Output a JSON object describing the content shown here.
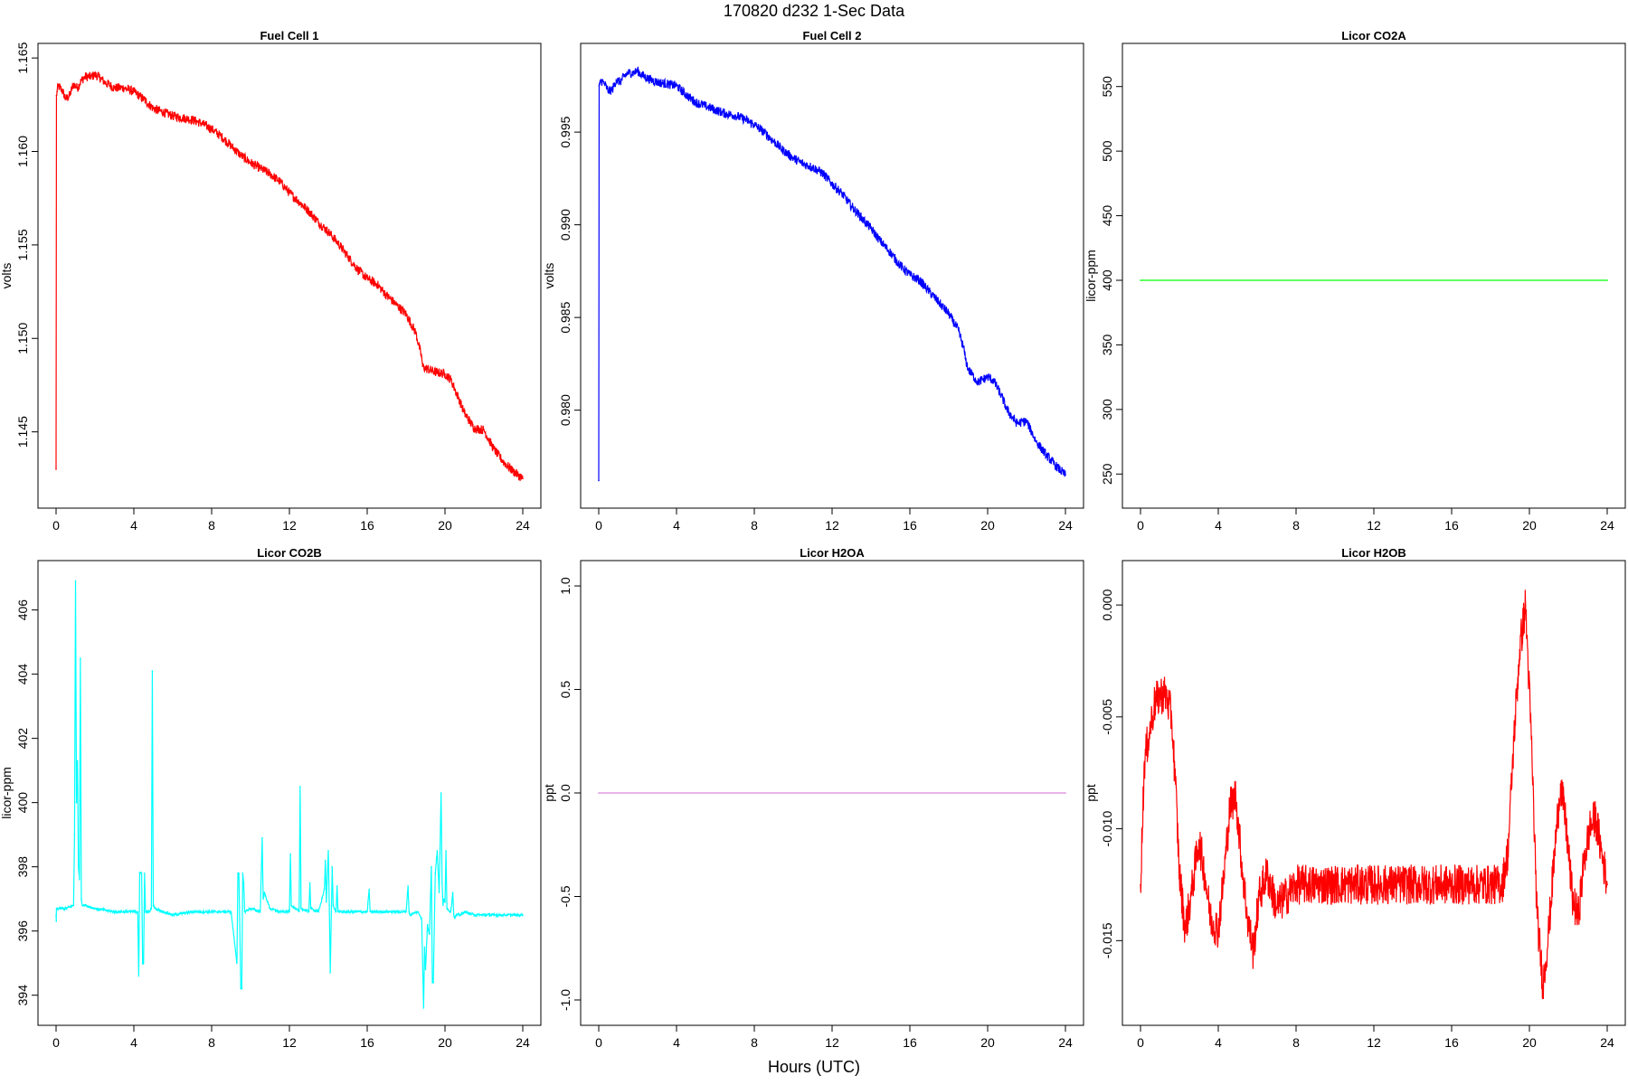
{
  "figure": {
    "suptitle": "170820   d232   1-Sec Data",
    "xlabel": "Hours (UTC)"
  },
  "chart_data": [
    {
      "id": "fc1",
      "type": "line",
      "title": "Fuel Cell 1",
      "ylabel": "volts",
      "color": "#ff0000",
      "xlim": [
        0,
        24
      ],
      "ylim": [
        1.1415,
        1.1652
      ],
      "xticks": [
        0,
        4,
        8,
        12,
        16,
        20,
        24
      ],
      "yticks": [
        1.145,
        1.15,
        1.155,
        1.16,
        1.165
      ],
      "ytick_labels": [
        "1.145",
        "1.150",
        "1.155",
        "1.160",
        "1.165"
      ],
      "noise": 0.00025,
      "x": [
        0,
        0.02,
        0.05,
        0.1,
        0.3,
        0.5,
        0.7,
        0.9,
        1.1,
        1.3,
        1.5,
        1.8,
        2.0,
        2.2,
        2.5,
        3.0,
        3.5,
        4.0,
        4.5,
        5.0,
        5.5,
        6.0,
        6.5,
        7.0,
        7.5,
        8.0,
        8.5,
        9.0,
        9.5,
        10.0,
        10.5,
        11.0,
        11.5,
        12.0,
        12.5,
        13.0,
        13.5,
        14.0,
        14.5,
        15.0,
        15.5,
        16.0,
        16.5,
        17.0,
        17.5,
        18.0,
        18.5,
        18.8,
        18.85,
        19.0,
        19.5,
        20.0,
        20.3,
        20.7,
        21.0,
        21.5,
        22.0,
        22.5,
        23.0,
        23.5,
        24.0
      ],
      "y": [
        1.143,
        1.163,
        1.1632,
        1.1635,
        1.1633,
        1.1628,
        1.163,
        1.1636,
        1.1634,
        1.1638,
        1.164,
        1.164,
        1.1641,
        1.164,
        1.1637,
        1.1634,
        1.1634,
        1.1632,
        1.1628,
        1.1623,
        1.1621,
        1.1619,
        1.1618,
        1.1617,
        1.1615,
        1.1612,
        1.1608,
        1.1603,
        1.1598,
        1.1594,
        1.1591,
        1.1588,
        1.1584,
        1.1578,
        1.1573,
        1.1568,
        1.1562,
        1.1557,
        1.1551,
        1.1544,
        1.1537,
        1.1532,
        1.1529,
        1.1523,
        1.1518,
        1.1513,
        1.1503,
        1.149,
        1.1485,
        1.1484,
        1.1482,
        1.1481,
        1.1478,
        1.1468,
        1.146,
        1.1452,
        1.1451,
        1.1441,
        1.1434,
        1.1429,
        1.1425
      ]
    },
    {
      "id": "fc2",
      "type": "line",
      "title": "Fuel Cell 2",
      "ylabel": "volts",
      "color": "#0000ff",
      "xlim": [
        0,
        24
      ],
      "ylim": [
        0.9753,
        0.9992
      ],
      "xticks": [
        0,
        4,
        8,
        12,
        16,
        20,
        24
      ],
      "yticks": [
        0.98,
        0.985,
        0.99,
        0.995
      ],
      "ytick_labels": [
        "0.980",
        "0.985",
        "0.990",
        "0.995"
      ],
      "noise": 0.00025,
      "x": [
        0,
        0.02,
        0.05,
        0.1,
        0.3,
        0.5,
        0.7,
        0.9,
        1.1,
        1.3,
        1.5,
        1.8,
        2.0,
        2.2,
        2.5,
        3.0,
        3.5,
        4.0,
        4.5,
        5.0,
        5.5,
        6.0,
        6.5,
        7.0,
        7.5,
        8.0,
        8.5,
        9.0,
        9.5,
        10.0,
        10.5,
        11.0,
        11.5,
        12.0,
        12.5,
        13.0,
        13.5,
        14.0,
        14.5,
        15.0,
        15.5,
        16.0,
        16.5,
        17.0,
        17.5,
        18.0,
        18.5,
        18.8,
        18.85,
        19.0,
        19.5,
        20.0,
        20.3,
        20.7,
        21.0,
        21.5,
        22.0,
        22.5,
        23.0,
        23.5,
        24.0
      ],
      "y": [
        0.9762,
        0.9975,
        0.9976,
        0.9978,
        0.9976,
        0.9972,
        0.9973,
        0.9978,
        0.9977,
        0.998,
        0.9982,
        0.9982,
        0.9983,
        0.9981,
        0.9979,
        0.9977,
        0.9976,
        0.9975,
        0.997,
        0.9966,
        0.9964,
        0.9962,
        0.996,
        0.9959,
        0.9957,
        0.9954,
        0.995,
        0.9945,
        0.994,
        0.9936,
        0.9933,
        0.9931,
        0.9928,
        0.9922,
        0.9917,
        0.991,
        0.9904,
        0.9898,
        0.9891,
        0.9885,
        0.9878,
        0.9873,
        0.987,
        0.9864,
        0.9858,
        0.9852,
        0.9843,
        0.9832,
        0.9828,
        0.9822,
        0.9815,
        0.9818,
        0.9816,
        0.9808,
        0.98,
        0.9793,
        0.9794,
        0.9783,
        0.9776,
        0.977,
        0.9765
      ]
    },
    {
      "id": "co2a",
      "type": "line",
      "title": "Licor CO2A",
      "ylabel": "licor-ppm",
      "color": "#00ff00",
      "xlim": [
        0,
        24
      ],
      "ylim": [
        232,
        575
      ],
      "xticks": [
        0,
        4,
        8,
        12,
        16,
        20,
        24
      ],
      "yticks": [
        250,
        300,
        350,
        400,
        450,
        500,
        550
      ],
      "ytick_labels": [
        "250",
        "300",
        "350",
        "400",
        "450",
        "500",
        "550"
      ],
      "noise": 0,
      "x": [
        0,
        24
      ],
      "y": [
        400,
        400
      ]
    },
    {
      "id": "co2b",
      "type": "line",
      "title": "Licor CO2B",
      "ylabel": "licor-ppm",
      "color": "#00ffff",
      "xlim": [
        0,
        24
      ],
      "ylim": [
        393.4,
        407.2
      ],
      "xticks": [
        0,
        4,
        8,
        12,
        16,
        20,
        24
      ],
      "yticks": [
        394,
        396,
        398,
        400,
        402,
        404,
        406
      ],
      "ytick_labels": [
        "394",
        "396",
        "398",
        "400",
        "402",
        "404",
        "406"
      ],
      "noise": 0.04,
      "x": [
        0,
        0.01,
        0.02,
        0.5,
        0.9,
        0.95,
        1.0,
        1.05,
        1.1,
        1.15,
        1.2,
        1.25,
        1.3,
        1.35,
        1.4,
        1.5,
        2.0,
        3.0,
        4.0,
        4.2,
        4.25,
        4.3,
        4.4,
        4.45,
        4.5,
        4.55,
        4.6,
        4.8,
        4.9,
        4.95,
        5.0,
        5.1,
        5.5,
        6.0,
        7.0,
        8.0,
        9.0,
        9.3,
        9.35,
        9.4,
        9.5,
        9.55,
        9.6,
        9.65,
        9.7,
        10.0,
        10.5,
        10.6,
        10.65,
        10.7,
        11.0,
        11.5,
        12.0,
        12.05,
        12.1,
        12.5,
        12.55,
        12.6,
        13.0,
        13.05,
        13.1,
        13.5,
        13.8,
        13.85,
        13.9,
        14.0,
        14.05,
        14.1,
        14.2,
        14.25,
        14.3,
        14.4,
        14.45,
        14.5,
        15.0,
        16.0,
        16.1,
        16.15,
        16.2,
        17.0,
        18.0,
        18.1,
        18.15,
        18.2,
        18.6,
        18.8,
        18.9,
        18.95,
        19.0,
        19.1,
        19.2,
        19.3,
        19.35,
        19.4,
        19.5,
        19.6,
        19.7,
        19.8,
        19.85,
        19.9,
        19.95,
        20.0,
        20.05,
        20.1,
        20.3,
        20.4,
        20.45,
        20.5,
        20.6,
        20.8,
        21.0,
        21.5,
        22.0,
        23.0,
        24.0
      ],
      "y": [
        396.5,
        396.3,
        396.7,
        396.7,
        396.8,
        399.0,
        406.9,
        400.0,
        401.3,
        398.0,
        397.6,
        404.5,
        397.0,
        396.8,
        396.8,
        396.8,
        396.7,
        396.6,
        396.6,
        396.6,
        394.6,
        397.8,
        397.8,
        395.0,
        395.0,
        397.8,
        396.6,
        396.6,
        396.7,
        404.1,
        396.8,
        396.7,
        396.6,
        396.5,
        396.6,
        396.6,
        396.6,
        395.0,
        397.8,
        397.8,
        394.2,
        394.2,
        397.8,
        397.5,
        396.6,
        396.7,
        396.6,
        398.9,
        397.0,
        397.2,
        396.7,
        396.6,
        396.6,
        398.4,
        396.8,
        396.6,
        400.5,
        396.7,
        396.6,
        397.5,
        396.7,
        396.6,
        397.3,
        398.2,
        396.9,
        398.5,
        396.8,
        394.7,
        398.0,
        396.8,
        396.7,
        396.6,
        397.4,
        396.6,
        396.6,
        396.6,
        397.3,
        396.6,
        396.6,
        396.6,
        396.6,
        397.4,
        396.6,
        396.5,
        396.6,
        396.4,
        393.6,
        395.5,
        394.8,
        396.2,
        395.9,
        398.0,
        394.4,
        394.4,
        397.8,
        398.5,
        397.2,
        400.3,
        397.5,
        396.8,
        397.0,
        396.9,
        398.5,
        396.7,
        396.6,
        397.2,
        396.5,
        396.4,
        396.5,
        396.5,
        396.6,
        396.5,
        396.5,
        396.5,
        396.5
      ]
    },
    {
      "id": "h2oa",
      "type": "line",
      "title": "Licor H2OA",
      "ylabel": "ppt",
      "color": "#dd88dd",
      "xlim": [
        0,
        24
      ],
      "ylim": [
        -1.07,
        1.07
      ],
      "xticks": [
        0,
        4,
        8,
        12,
        16,
        20,
        24
      ],
      "yticks": [
        -1.0,
        -0.5,
        0.0,
        0.5,
        1.0
      ],
      "ytick_labels": [
        "-1.0",
        "-0.5",
        "0.0",
        "0.5",
        "1.0"
      ],
      "noise": 0,
      "x": [
        0,
        24
      ],
      "y": [
        0,
        0
      ]
    },
    {
      "id": "h2ob",
      "type": "line",
      "title": "Licor H2OB",
      "ylabel": "ppt",
      "color": "#ff0000",
      "xlim": [
        0,
        24
      ],
      "ylim": [
        -0.0183,
        0.0015
      ],
      "xticks": [
        0,
        4,
        8,
        12,
        16,
        20,
        24
      ],
      "yticks": [
        -0.015,
        -0.01,
        -0.005,
        0.0
      ],
      "ytick_labels": [
        "-0.015",
        "-0.010",
        "-0.005",
        "0.000"
      ],
      "noise": 0.0009,
      "x": [
        0,
        0.2,
        0.4,
        0.7,
        1.0,
        1.3,
        1.6,
        1.8,
        2.0,
        2.3,
        2.6,
        3.0,
        3.3,
        3.6,
        4.0,
        4.3,
        4.6,
        4.9,
        5.2,
        5.5,
        5.8,
        6.1,
        6.5,
        7.0,
        7.5,
        8.0,
        9.0,
        10.0,
        11.0,
        12.0,
        13.0,
        14.0,
        15.0,
        16.0,
        17.0,
        18.0,
        18.6,
        18.9,
        19.2,
        19.5,
        19.8,
        20.1,
        20.4,
        20.7,
        21.0,
        21.3,
        21.6,
        21.9,
        22.2,
        22.5,
        22.8,
        23.1,
        23.4,
        23.7,
        24.0
      ],
      "y": [
        -0.0125,
        -0.007,
        -0.006,
        -0.0045,
        -0.004,
        -0.004,
        -0.005,
        -0.008,
        -0.012,
        -0.0145,
        -0.013,
        -0.0105,
        -0.012,
        -0.014,
        -0.0145,
        -0.012,
        -0.009,
        -0.0085,
        -0.0115,
        -0.014,
        -0.0155,
        -0.013,
        -0.012,
        -0.0135,
        -0.013,
        -0.0125,
        -0.0125,
        -0.0125,
        -0.0125,
        -0.0125,
        -0.0125,
        -0.0125,
        -0.0125,
        -0.0125,
        -0.0125,
        -0.0125,
        -0.0125,
        -0.011,
        -0.006,
        -0.002,
        0.0,
        -0.006,
        -0.014,
        -0.017,
        -0.0145,
        -0.011,
        -0.008,
        -0.01,
        -0.013,
        -0.014,
        -0.0115,
        -0.01,
        -0.0095,
        -0.011,
        -0.0125
      ]
    }
  ]
}
